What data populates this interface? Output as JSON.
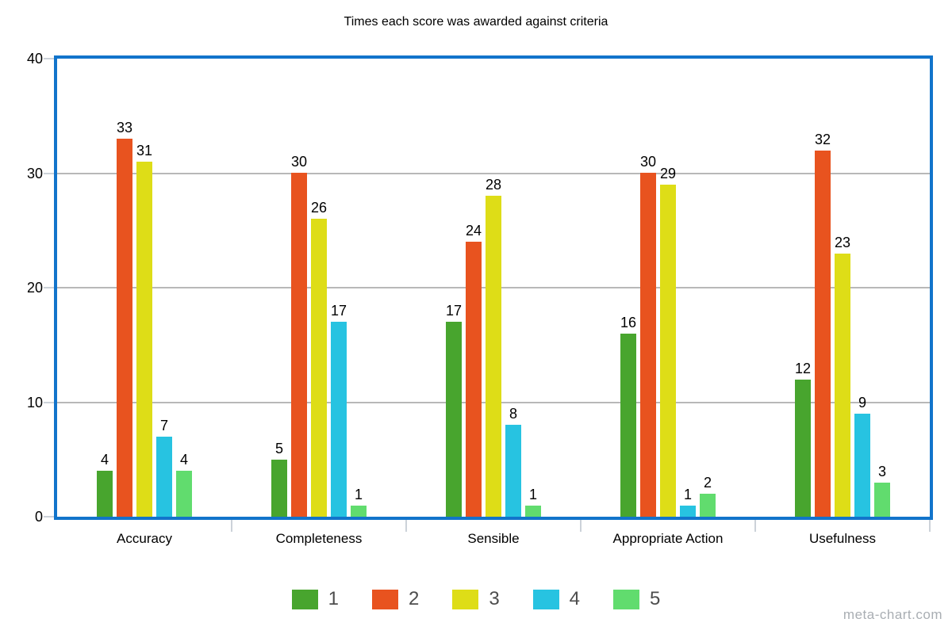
{
  "watermark": "meta-chart.com",
  "colors": {
    "frame": "#1274cb",
    "gridline": "#b8b8b8",
    "tick": "#ccd2d9",
    "legend_text": "#4d4d4d",
    "watermark_text": "#a9aeb3",
    "text": "#000000",
    "background": "#ffffff"
  },
  "chart_data": {
    "type": "bar",
    "title": "Times each score was awarded against criteria",
    "categories": [
      "Accuracy",
      "Completeness",
      "Sensible",
      "Appropriate Action",
      "Usefulness"
    ],
    "series": [
      {
        "name": "1",
        "color": "#48a52e",
        "values": [
          4,
          5,
          17,
          16,
          12
        ]
      },
      {
        "name": "2",
        "color": "#e8531f",
        "values": [
          33,
          30,
          24,
          30,
          32
        ]
      },
      {
        "name": "3",
        "color": "#dedd17",
        "values": [
          31,
          26,
          28,
          29,
          23
        ]
      },
      {
        "name": "4",
        "color": "#27c3e1",
        "values": [
          7,
          17,
          8,
          1,
          9
        ]
      },
      {
        "name": "5",
        "color": "#61dc6e",
        "values": [
          4,
          1,
          1,
          2,
          3
        ]
      }
    ],
    "xlabel": "",
    "ylabel": "",
    "ylim": [
      0,
      40
    ],
    "yticks": [
      0,
      10,
      20,
      30,
      40
    ],
    "grid": true,
    "bar_value_labels": true,
    "legend_position": "bottom"
  }
}
